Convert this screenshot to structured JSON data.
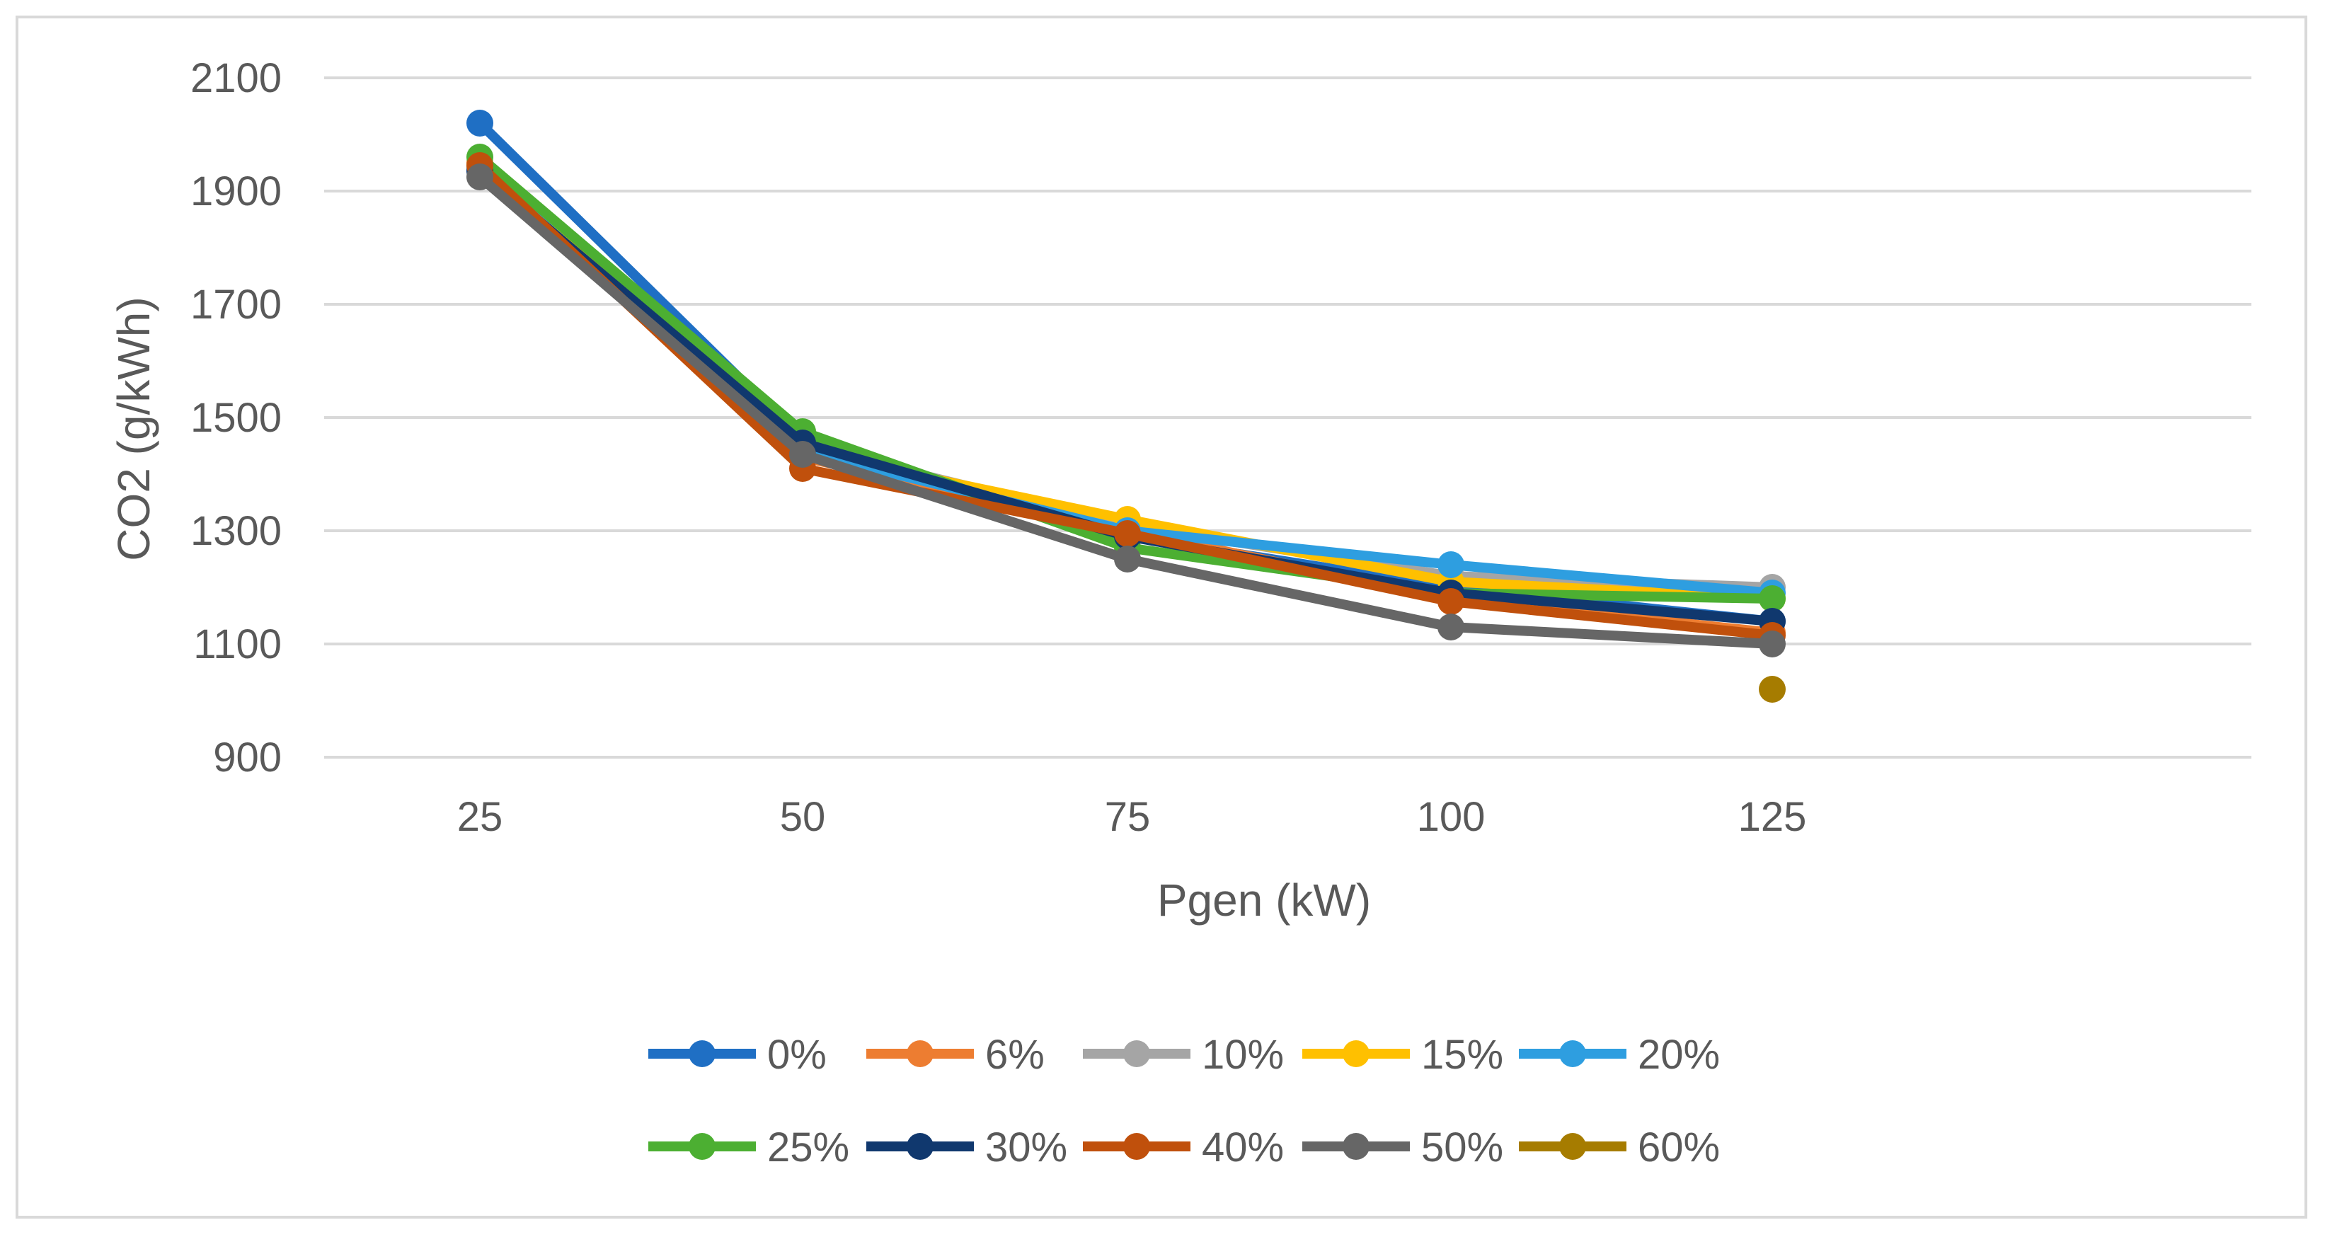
{
  "chart_data": {
    "type": "line",
    "title": "",
    "xlabel": "Pgen (kW)",
    "ylabel": "CO2 (g/kWh)",
    "categories": [
      "25",
      "50",
      "75",
      "100",
      "125"
    ],
    "ylim": [
      900,
      2100
    ],
    "yticks": [
      900,
      1100,
      1300,
      1500,
      1700,
      1900,
      2100
    ],
    "grid": true,
    "legend_position": "bottom",
    "series": [
      {
        "name": "0%",
        "color": "#1f6fc4",
        "values": [
          2020,
          1460,
          1290,
          1200,
          1140
        ]
      },
      {
        "name": "6%",
        "color": "#ed7d31",
        "values": [
          1950,
          1430,
          1300,
          1180,
          1120
        ]
      },
      {
        "name": "10%",
        "color": "#a5a5a5",
        "values": [
          1940,
          1450,
          1310,
          1220,
          1200
        ]
      },
      {
        "name": "15%",
        "color": "#ffc000",
        "values": [
          1945,
          1440,
          1320,
          1210,
          1180
        ]
      },
      {
        "name": "20%",
        "color": "#2e9ee0",
        "values": [
          1940,
          1440,
          1300,
          1240,
          1190
        ]
      },
      {
        "name": "25%",
        "color": "#4caf32",
        "values": [
          1960,
          1475,
          1270,
          1190,
          1180
        ]
      },
      {
        "name": "30%",
        "color": "#10386e",
        "values": [
          1935,
          1455,
          1290,
          1190,
          1140
        ]
      },
      {
        "name": "40%",
        "color": "#c0500c",
        "values": [
          1945,
          1410,
          1295,
          1175,
          1115
        ]
      },
      {
        "name": "50%",
        "color": "#666666",
        "values": [
          1925,
          1435,
          1250,
          1130,
          1100
        ]
      },
      {
        "name": "60%",
        "color": "#a67c00",
        "values": [
          null,
          null,
          null,
          null,
          1020
        ]
      }
    ]
  }
}
